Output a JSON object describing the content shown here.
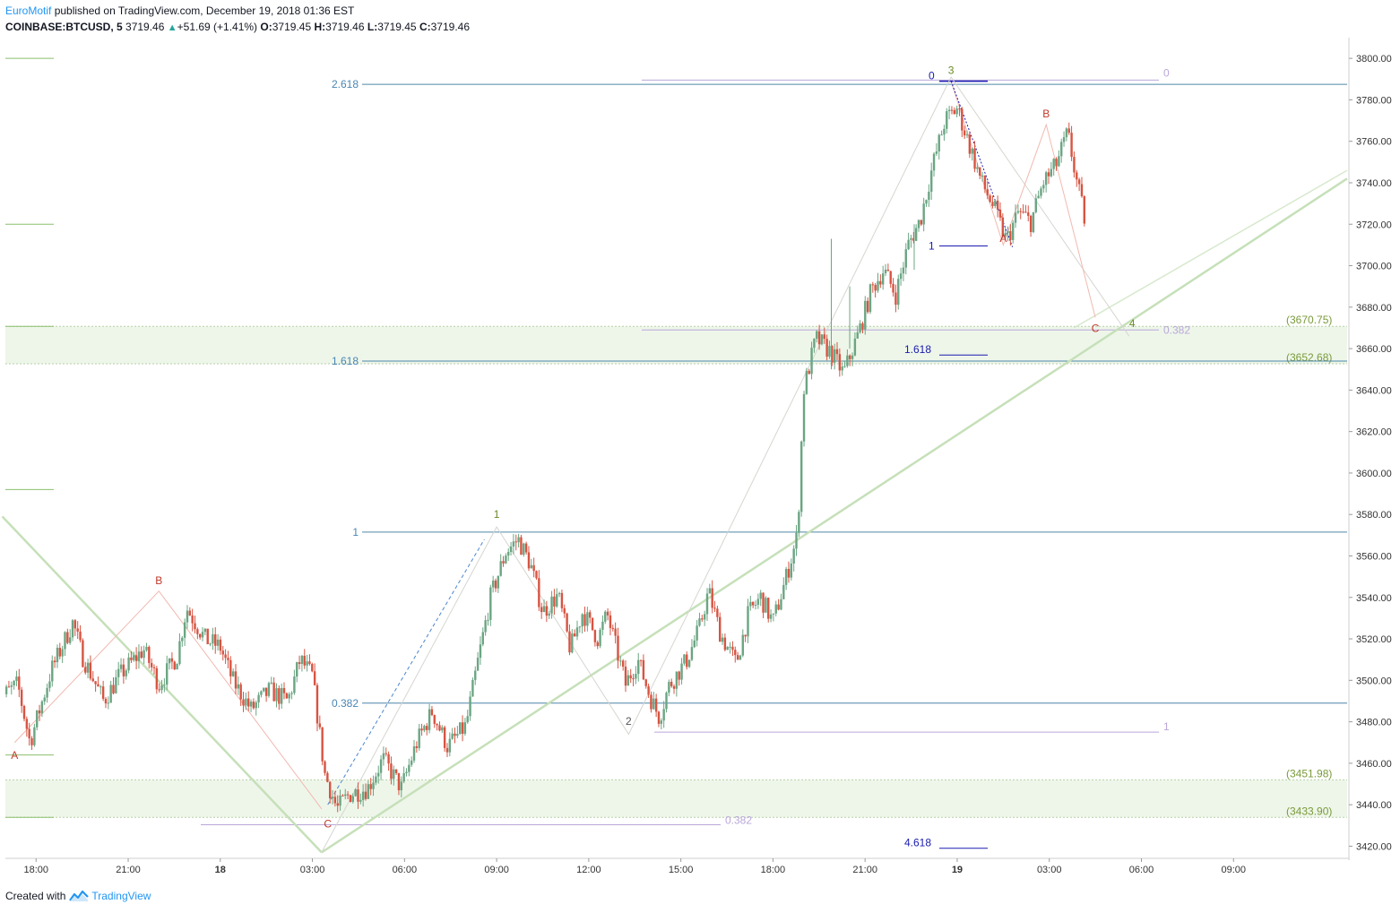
{
  "header": {
    "author": "EuroMotif",
    "published_text": "published on TradingView.com, December 19, 2018 01:36 EST",
    "symbol": "COINBASE:BTCUSD, 5",
    "last": "3719.46",
    "change_icon": "triangle-up-icon",
    "change": "+51.69 (+1.41%)",
    "open_label": "O:",
    "open": "3719.45",
    "high_label": "H:",
    "high": "3719.46",
    "low_label": "L:",
    "low": "3719.45",
    "close_label": "C:",
    "close": "3719.46"
  },
  "footer": {
    "created_with": "Created with",
    "brand": "TradingView",
    "brand_icon": "tradingview-logo-icon"
  },
  "colors": {
    "up": "#6ba583",
    "down": "#d75442",
    "fib_blue": "#4a86b4",
    "zone": "#eef6ea",
    "green_label": "#7a9a3a",
    "red_label": "#c0392b",
    "purple": "#b9a7d9",
    "navy": "#1a1ab0"
  },
  "chart_data": {
    "type": "candlestick",
    "timeframe": "5",
    "ylim": [
      3415,
      3810
    ],
    "y_ticks": [
      3420,
      3440,
      3460,
      3480,
      3500,
      3520,
      3540,
      3560,
      3580,
      3600,
      3620,
      3640,
      3660,
      3680,
      3700,
      3720,
      3740,
      3760,
      3780,
      3800
    ],
    "y_tick_labels": [
      "3420.00",
      "3440.00",
      "3460.00",
      "3480.00",
      "3500.00",
      "3520.00",
      "3540.00",
      "3560.00",
      "3580.00",
      "3600.00",
      "3620.00",
      "3640.00",
      "3660.00",
      "3680.00",
      "3700.00",
      "3720.00",
      "3740.00",
      "3760.00",
      "3780.00",
      "3800.00"
    ],
    "xlim": [
      -4,
      39.7
    ],
    "x_ticks": [
      {
        "t": -3,
        "label": "18:00"
      },
      {
        "t": 0,
        "label": "21:00"
      },
      {
        "t": 3,
        "label": "18"
      },
      {
        "t": 6,
        "label": "03:00"
      },
      {
        "t": 9,
        "label": "06:00"
      },
      {
        "t": 12,
        "label": "09:00"
      },
      {
        "t": 15,
        "label": "12:00"
      },
      {
        "t": 18,
        "label": "15:00"
      },
      {
        "t": 21,
        "label": "18:00"
      },
      {
        "t": 24,
        "label": "21:00"
      },
      {
        "t": 27,
        "label": "19"
      },
      {
        "t": 30,
        "label": "03:00"
      },
      {
        "t": 33,
        "label": "06:00"
      },
      {
        "t": 36,
        "label": "09:00"
      }
    ],
    "price_path": [
      [
        -4.3,
        3490
      ],
      [
        -3.6,
        3498
      ],
      [
        -3.2,
        3470
      ],
      [
        -2.5,
        3505
      ],
      [
        -1.8,
        3528
      ],
      [
        -1.5,
        3512
      ],
      [
        -0.8,
        3490
      ],
      [
        -0.3,
        3502
      ],
      [
        0.5,
        3515
      ],
      [
        1.0,
        3498
      ],
      [
        1.6,
        3512
      ],
      [
        1.9,
        3535
      ],
      [
        2.5,
        3520
      ],
      [
        3.0,
        3516
      ],
      [
        3.4,
        3500
      ],
      [
        4.0,
        3486
      ],
      [
        4.6,
        3495
      ],
      [
        5.2,
        3490
      ],
      [
        5.6,
        3510
      ],
      [
        6.0,
        3502
      ],
      [
        6.4,
        3455
      ],
      [
        6.8,
        3438
      ],
      [
        7.2,
        3445
      ],
      [
        7.8,
        3448
      ],
      [
        8.3,
        3462
      ],
      [
        8.9,
        3448
      ],
      [
        9.4,
        3470
      ],
      [
        9.9,
        3485
      ],
      [
        10.4,
        3468
      ],
      [
        11.0,
        3478
      ],
      [
        11.4,
        3510
      ],
      [
        11.8,
        3540
      ],
      [
        12.3,
        3562
      ],
      [
        12.7,
        3568
      ],
      [
        13.1,
        3556
      ],
      [
        13.5,
        3533
      ],
      [
        14.0,
        3541
      ],
      [
        14.4,
        3515
      ],
      [
        14.8,
        3533
      ],
      [
        15.3,
        3520
      ],
      [
        15.6,
        3532
      ],
      [
        16.2,
        3498
      ],
      [
        16.6,
        3510
      ],
      [
        17.0,
        3492
      ],
      [
        17.3,
        3482
      ],
      [
        17.6,
        3497
      ],
      [
        18.2,
        3510
      ],
      [
        18.6,
        3525
      ],
      [
        18.9,
        3543
      ],
      [
        19.3,
        3522
      ],
      [
        19.8,
        3508
      ],
      [
        20.2,
        3532
      ],
      [
        20.6,
        3540
      ],
      [
        21.0,
        3528
      ],
      [
        21.4,
        3548
      ],
      [
        21.8,
        3570
      ],
      [
        22.0,
        3640
      ],
      [
        22.4,
        3665
      ],
      [
        22.9,
        3658
      ],
      [
        23.3,
        3648
      ],
      [
        23.8,
        3668
      ],
      [
        24.2,
        3688
      ],
      [
        24.6,
        3698
      ],
      [
        25.0,
        3686
      ],
      [
        25.4,
        3710
      ],
      [
        25.8,
        3722
      ],
      [
        26.2,
        3748
      ],
      [
        26.6,
        3770
      ],
      [
        27.0,
        3776
      ],
      [
        27.4,
        3758
      ],
      [
        27.8,
        3740
      ],
      [
        28.2,
        3728
      ],
      [
        28.6,
        3712
      ],
      [
        29.0,
        3726
      ],
      [
        29.4,
        3721
      ],
      [
        29.8,
        3740
      ],
      [
        30.2,
        3748
      ],
      [
        30.6,
        3764
      ],
      [
        30.9,
        3740
      ],
      [
        31.2,
        3719
      ]
    ],
    "fib_levels": [
      {
        "label": "2.618",
        "price": 3787.5
      },
      {
        "label": "1.618",
        "price": 3654.0
      },
      {
        "label": "1",
        "price": 3571.5
      },
      {
        "label": "0.382",
        "price": 3489.0
      }
    ],
    "fib_levels_purple": [
      {
        "label": "0",
        "price": 3789.5
      },
      {
        "label": "0.382",
        "price": 3669.0
      },
      {
        "label": "1",
        "price": 3475.0
      }
    ],
    "fib_levels_purple_lower": [
      {
        "label": "0.382",
        "price": 3432.5
      }
    ],
    "fib_levels_navy": [
      {
        "label": "0",
        "price": 3789.0
      },
      {
        "label": "1",
        "price": 3709.5
      },
      {
        "label": "1.618",
        "price": 3659.5
      },
      {
        "label": "4.618",
        "price": 3419.0
      }
    ],
    "zones": [
      {
        "top": 3670.75,
        "bottom": 3652.68,
        "top_label": "(3670.75)",
        "bottom_label": "(3652.68)"
      },
      {
        "top": 3451.98,
        "bottom": 3433.9,
        "top_label": "(3451.98)",
        "bottom_label": "(3433.90)"
      }
    ],
    "wave_labels": [
      {
        "text": "3",
        "t": 26.8,
        "price": 3789,
        "kind": "green"
      },
      {
        "text": "1",
        "t": 12.0,
        "price": 3575,
        "kind": "green"
      },
      {
        "text": "2",
        "t": 16.3,
        "price": 3475,
        "kind": "grey"
      },
      {
        "text": "4",
        "t": 32.7,
        "price": 3667,
        "kind": "green"
      },
      {
        "text": "A",
        "t": -3.7,
        "price": 3469,
        "kind": "red"
      },
      {
        "text": "B",
        "t": 1.0,
        "price": 3543,
        "kind": "red"
      },
      {
        "text": "C",
        "t": 6.5,
        "price": 3436,
        "kind": "red"
      },
      {
        "text": "A",
        "t": 28.5,
        "price": 3708,
        "kind": "red"
      },
      {
        "text": "B",
        "t": 29.9,
        "price": 3768,
        "kind": "red"
      },
      {
        "text": "C",
        "t": 31.5,
        "price": 3675,
        "kind": "red"
      }
    ]
  }
}
